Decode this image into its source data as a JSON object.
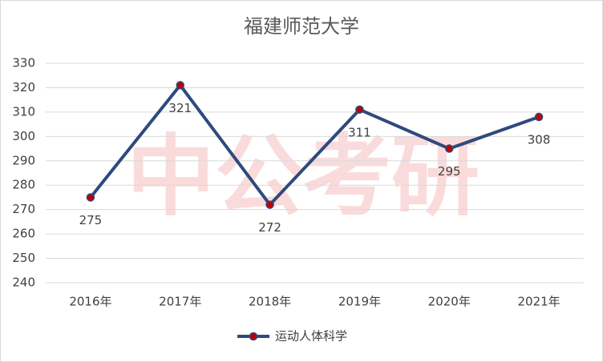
{
  "chart_data": {
    "type": "line",
    "title": "福建师范大学",
    "categories": [
      "2016年",
      "2017年",
      "2018年",
      "2019年",
      "2020年",
      "2021年"
    ],
    "series": [
      {
        "name": "运动人体科学",
        "color": "#2e4a7d",
        "marker_color": "#c00000",
        "values": [
          275,
          321,
          272,
          311,
          295,
          308
        ]
      }
    ],
    "ylim": [
      240,
      330
    ],
    "yticks": [
      240,
      250,
      260,
      270,
      280,
      290,
      300,
      310,
      320,
      330
    ],
    "grid": true,
    "legend": "bottom",
    "watermark": "中公考研"
  }
}
